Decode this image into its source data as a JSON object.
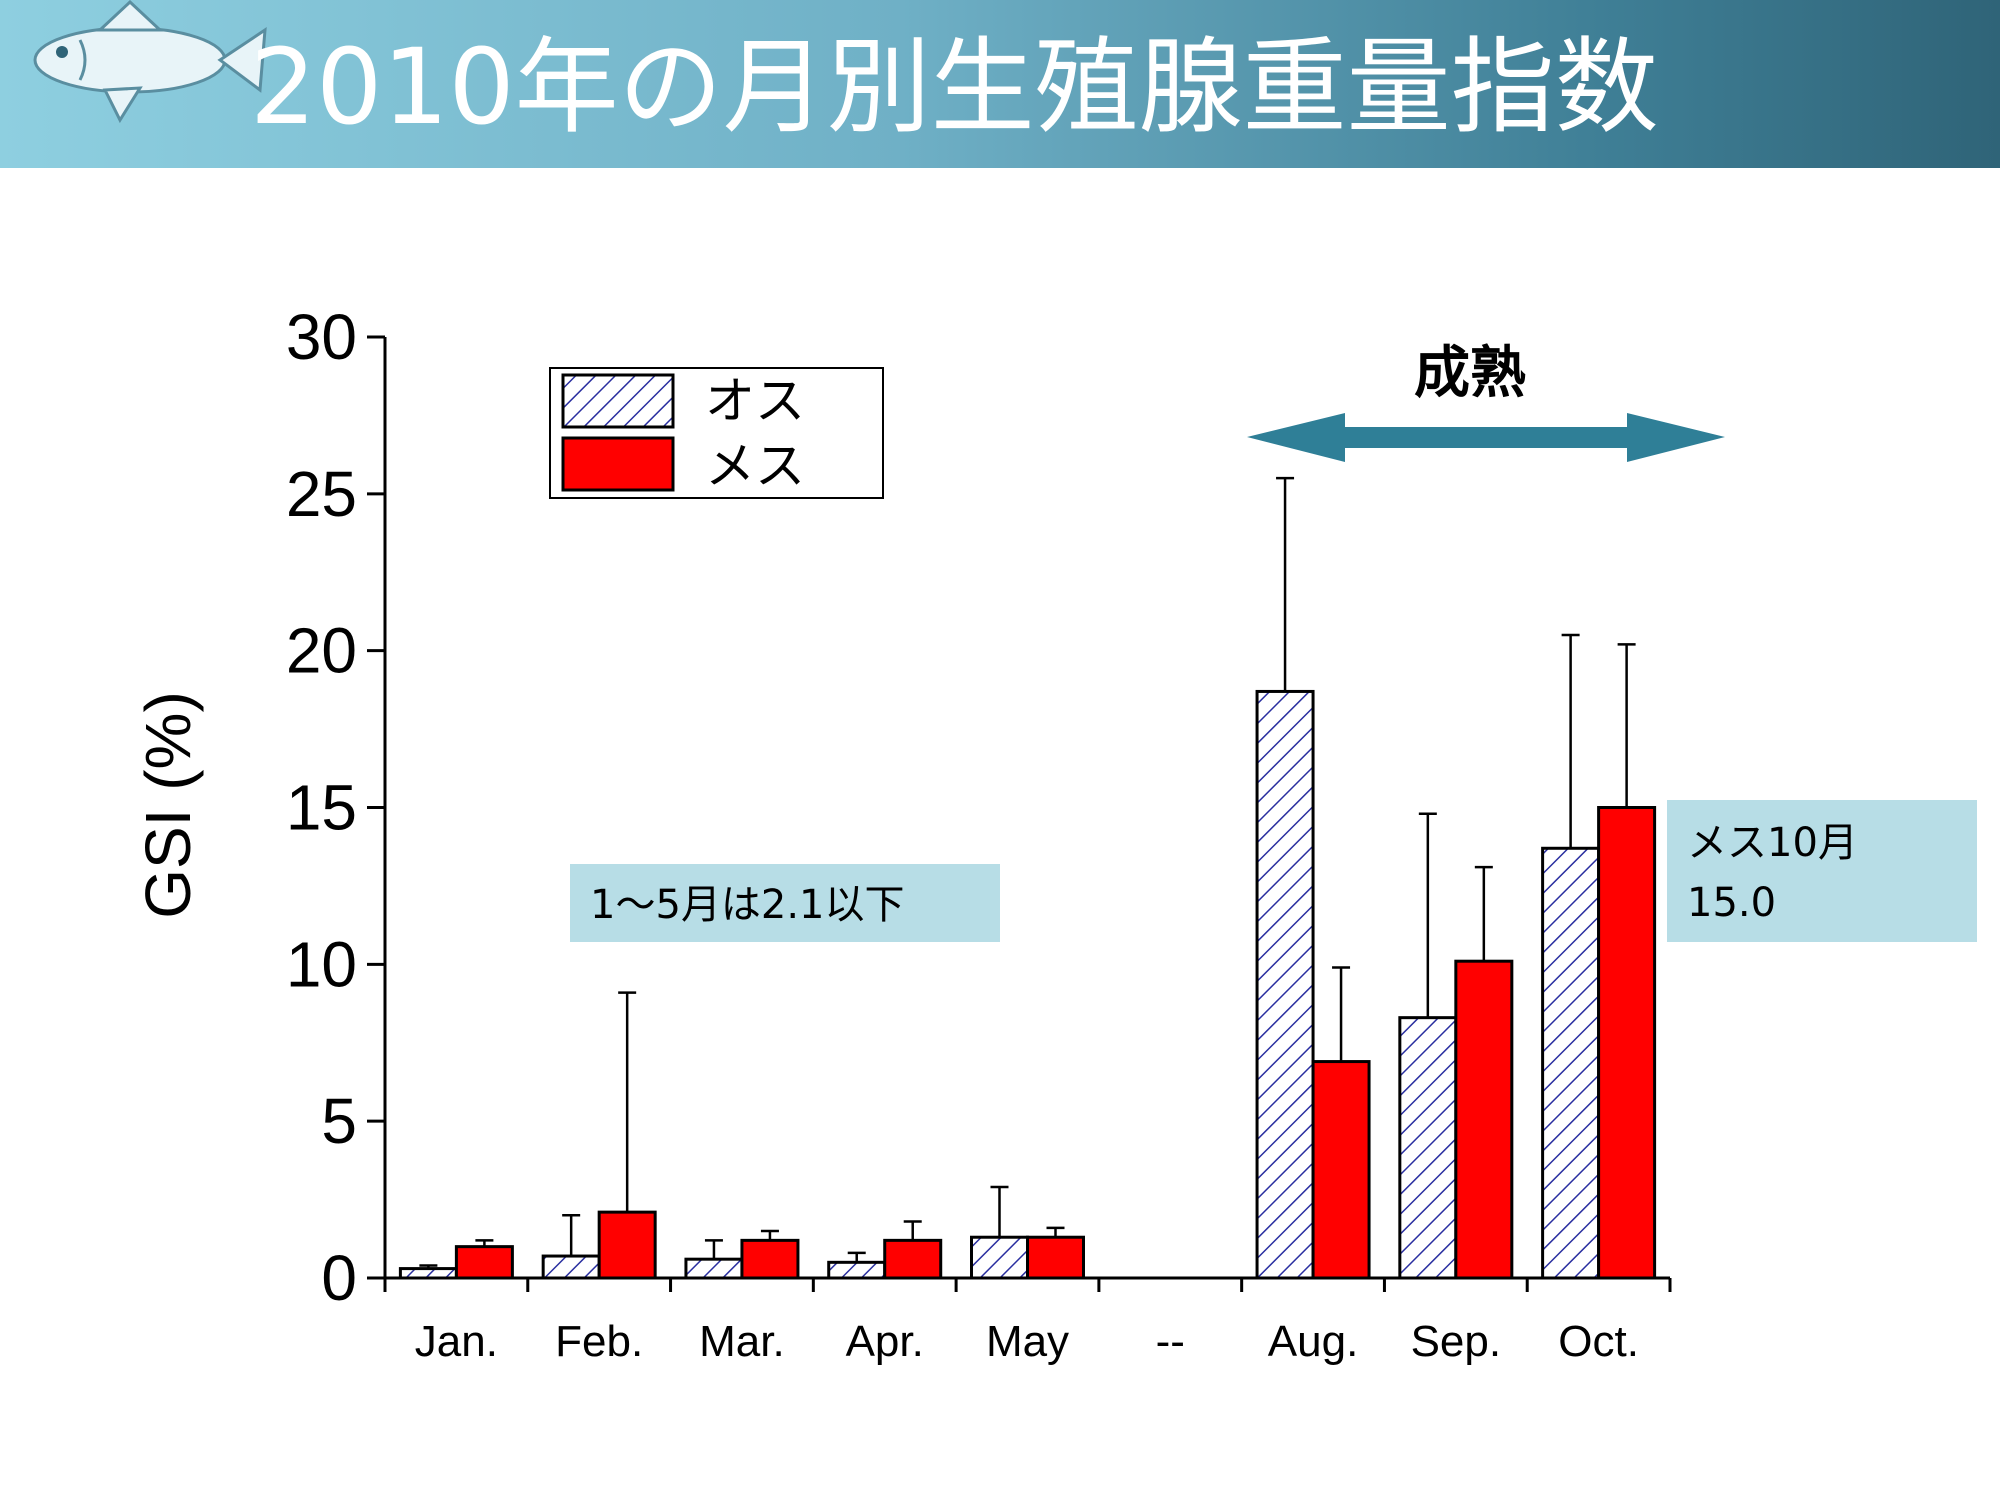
{
  "title": "2010年の月別生殖腺重量指数",
  "colors": {
    "male_hatch": "#2a2fa0",
    "female_fill": "#ff0000",
    "annotation_bg": "#b7dde6",
    "arrow": "#2f7f97"
  },
  "icons": {
    "logo": "fish-icon"
  },
  "chart_data": {
    "type": "bar",
    "ylabel": "GSI (%)",
    "xlabel": "",
    "ylim": [
      0,
      30
    ],
    "yticks": [
      0,
      5,
      10,
      15,
      20,
      25,
      30
    ],
    "categories": [
      "Jan.",
      "Feb.",
      "Mar.",
      "Apr.",
      "May",
      "--",
      "Aug.",
      "Sep.",
      "Oct."
    ],
    "series": [
      {
        "name": "オス",
        "pattern": "hatched",
        "values": [
          0.3,
          0.7,
          0.6,
          0.5,
          1.3,
          null,
          18.7,
          8.3,
          13.7
        ],
        "error": [
          0.1,
          1.3,
          0.6,
          0.3,
          1.6,
          null,
          6.8,
          6.5,
          6.8
        ]
      },
      {
        "name": "メス",
        "pattern": "solid",
        "values": [
          1.0,
          2.1,
          1.2,
          1.2,
          1.3,
          null,
          6.9,
          10.1,
          15.0
        ],
        "error": [
          0.2,
          7.0,
          0.3,
          0.6,
          0.3,
          null,
          3.0,
          3.0,
          5.2
        ]
      }
    ],
    "legend": {
      "position": "top-left",
      "entries": [
        "オス",
        "メス"
      ]
    },
    "annotations": {
      "maturation": "成熟",
      "low_note": "1〜5月は2.1以下",
      "female_oct_line1": "メス10月",
      "female_oct_line2": "15.0"
    }
  }
}
